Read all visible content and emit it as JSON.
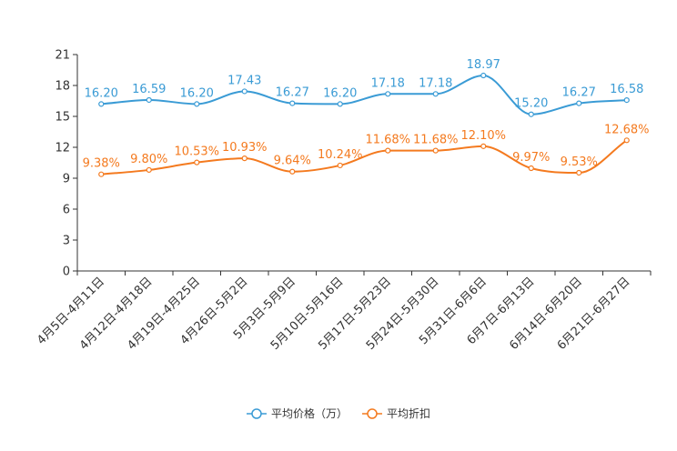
{
  "chart_data": {
    "type": "line",
    "title": "",
    "xlabel": "",
    "ylabel": "",
    "ylim": [
      0,
      21
    ],
    "yticks": [
      0,
      3,
      6,
      9,
      12,
      15,
      18,
      21
    ],
    "grid": false,
    "legend_position": "bottom",
    "categories": [
      "4月5日-4月11日",
      "4月12日-4月18日",
      "4月19日-4月25日",
      "4月26日-5月2日",
      "5月3日-5月9日",
      "5月10日-5月16日",
      "5月17日-5月23日",
      "5月24日-5月30日",
      "5月31日-6月6日",
      "6月7日-6月13日",
      "6月14日-6月20日",
      "6月21日-6月27日"
    ],
    "series": [
      {
        "name": "平均价格（万）",
        "color": "#3a9bd5",
        "values": [
          16.2,
          16.59,
          16.2,
          17.43,
          16.27,
          16.2,
          17.18,
          17.18,
          18.97,
          15.2,
          16.27,
          16.58
        ],
        "labels": [
          "16.20",
          "16.59",
          "16.20",
          "17.43",
          "16.27",
          "16.20",
          "17.18",
          "17.18",
          "18.97",
          "15.20",
          "16.27",
          "16.58"
        ]
      },
      {
        "name": "平均折扣",
        "color": "#f47a1f",
        "values": [
          9.38,
          9.8,
          10.53,
          10.93,
          9.64,
          10.24,
          11.68,
          11.68,
          12.1,
          9.97,
          9.53,
          12.68
        ],
        "labels": [
          "9.38%",
          "9.80%",
          "10.53%",
          "10.93%",
          "9.64%",
          "10.24%",
          "11.68%",
          "11.68%",
          "12.10%",
          "9.97%",
          "9.53%",
          "12.68%"
        ]
      }
    ]
  }
}
